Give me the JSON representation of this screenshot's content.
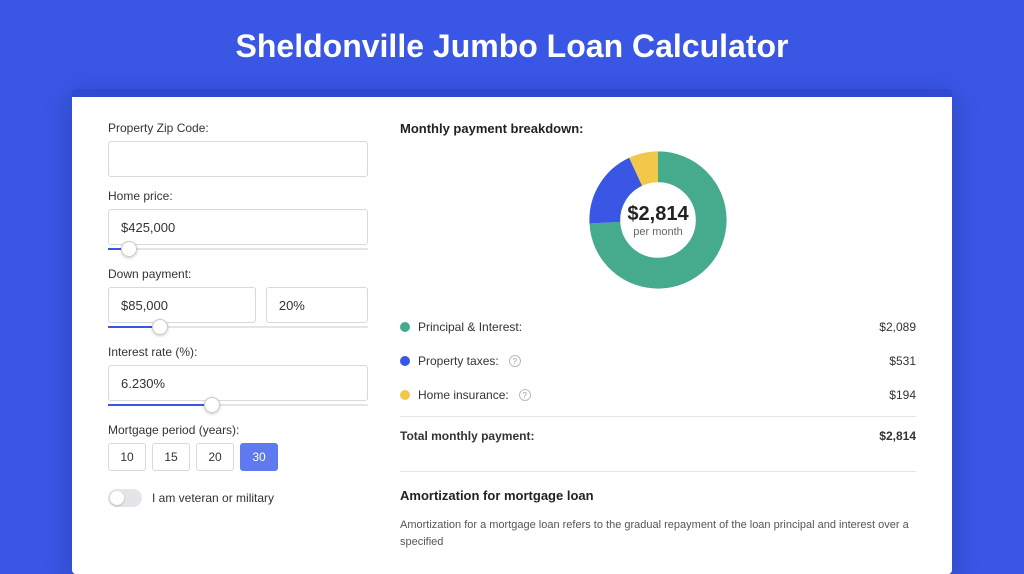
{
  "page": {
    "title": "Sheldonville Jumbo Loan Calculator",
    "background_color": "#3956e5",
    "card_accent_color": "#2f49d0"
  },
  "form": {
    "zip": {
      "label": "Property Zip Code:",
      "value": ""
    },
    "home_price": {
      "label": "Home price:",
      "value": "$425,000",
      "slider_pct": 8
    },
    "down_payment": {
      "label": "Down payment:",
      "amount": "$85,000",
      "pct": "20%",
      "slider_pct": 20
    },
    "interest_rate": {
      "label": "Interest rate (%):",
      "value": "6.230%",
      "slider_pct": 40
    },
    "mortgage_period": {
      "label": "Mortgage period (years):",
      "options": [
        "10",
        "15",
        "20",
        "30"
      ],
      "selected": "30"
    },
    "veteran": {
      "label": "I am veteran or military",
      "checked": false
    }
  },
  "breakdown": {
    "title": "Monthly payment breakdown:",
    "center_amount": "$2,814",
    "center_sub": "per month",
    "donut": {
      "segments": [
        {
          "label": "Principal & Interest:",
          "value": "$2,089",
          "pct": 74.2,
          "color": "#46ab8c"
        },
        {
          "label": "Property taxes:",
          "value": "$531",
          "pct": 18.9,
          "color": "#3956e5",
          "info": true
        },
        {
          "label": "Home insurance:",
          "value": "$194",
          "pct": 6.9,
          "color": "#f2c84b",
          "info": true
        }
      ],
      "strokeWidth": 22
    },
    "total": {
      "label": "Total monthly payment:",
      "value": "$2,814"
    }
  },
  "amortization": {
    "title": "Amortization for mortgage loan",
    "text": "Amortization for a mortgage loan refers to the gradual repayment of the loan principal and interest over a specified"
  }
}
